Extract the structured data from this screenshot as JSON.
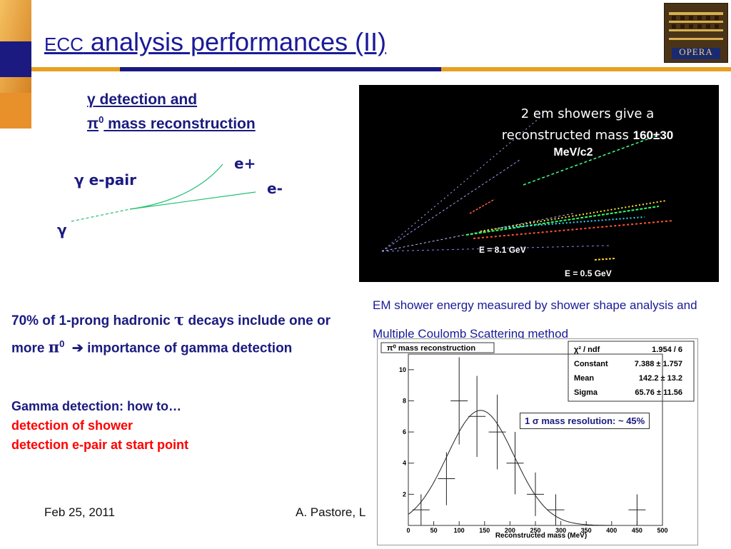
{
  "title": {
    "prefix": "ECC",
    "rest": " analysis performances (II)"
  },
  "logo": {
    "text": "OPERA"
  },
  "colors": {
    "title": "#1a1a99",
    "accent_bar": "#e8a020",
    "dark_bar": "#1a1a80",
    "red": "#ff0000"
  },
  "gamma_section": {
    "line1_symbol": "γ",
    "line1_text": " detection and",
    "line2_symbol": "π",
    "line2_sup": "0",
    "line2_text": " mass reconstruction"
  },
  "diagram": {
    "pair_label": "γ  e-pair",
    "e_plus": "e+",
    "e_minus": "e-",
    "gamma": "γ"
  },
  "shower_image": {
    "caption_line1": "2 em showers give a",
    "caption_line2": "reconstructed mass ",
    "caption_value": "160±30",
    "caption_unit": "MeV/c2",
    "energy1": "E = 8.1 GeV",
    "energy2": "E = 0.5 GeV"
  },
  "shower_caption": "EM shower energy measured by shower shape analysis and Multiple Coulomb Scattering method",
  "text1": {
    "a": "70% of 1-prong hadronic ",
    "tau": "τ",
    "b": "  decays include one or more ",
    "pi": "π",
    "sup": "0",
    "arrow": "➔",
    "c": "  importance of gamma detection"
  },
  "text2": {
    "line1": "Gamma detection: how to…",
    "line2": "detection of shower",
    "line3": "detection e-pair at start point"
  },
  "footer": {
    "date": "Feb 25, 2011",
    "author": "A. Pastore, L"
  },
  "histogram": {
    "title": "π⁰ mass reconstruction",
    "stats": [
      {
        "label": "χ² / ndf",
        "value": "1.954 / 6"
      },
      {
        "label": "Constant",
        "value": "7.388 ± 1.757"
      },
      {
        "label": "Mean",
        "value": "142.2 ± 13.2"
      },
      {
        "label": "Sigma",
        "value": "65.76 ± 11.56"
      }
    ],
    "resolution_note": "1 σ mass resolution:  ~ 45%",
    "xlabel": "Reconstructed mass (MeV)"
  },
  "chart_data": {
    "type": "scatter",
    "title": "π⁰ mass reconstruction",
    "xlabel": "Reconstructed mass (MeV)",
    "ylabel": "",
    "xlim": [
      0,
      500
    ],
    "ylim": [
      0,
      11
    ],
    "xticks": [
      0,
      50,
      100,
      150,
      200,
      250,
      300,
      350,
      400,
      450,
      500
    ],
    "yticks": [
      2,
      4,
      6,
      8,
      10
    ],
    "points": [
      {
        "x": 25,
        "y": 1,
        "yerr": 1.0
      },
      {
        "x": 75,
        "y": 3,
        "yerr": 1.7
      },
      {
        "x": 100,
        "y": 8,
        "yerr": 2.8
      },
      {
        "x": 135,
        "y": 7,
        "yerr": 2.6
      },
      {
        "x": 175,
        "y": 6,
        "yerr": 2.4
      },
      {
        "x": 210,
        "y": 4,
        "yerr": 2.0
      },
      {
        "x": 250,
        "y": 2,
        "yerr": 1.4
      },
      {
        "x": 290,
        "y": 1,
        "yerr": 1.0
      },
      {
        "x": 450,
        "y": 1,
        "yerr": 1.0
      }
    ],
    "fit": {
      "type": "gaussian",
      "constant": 7.388,
      "mean": 142.2,
      "sigma": 65.76
    },
    "grid": false
  }
}
